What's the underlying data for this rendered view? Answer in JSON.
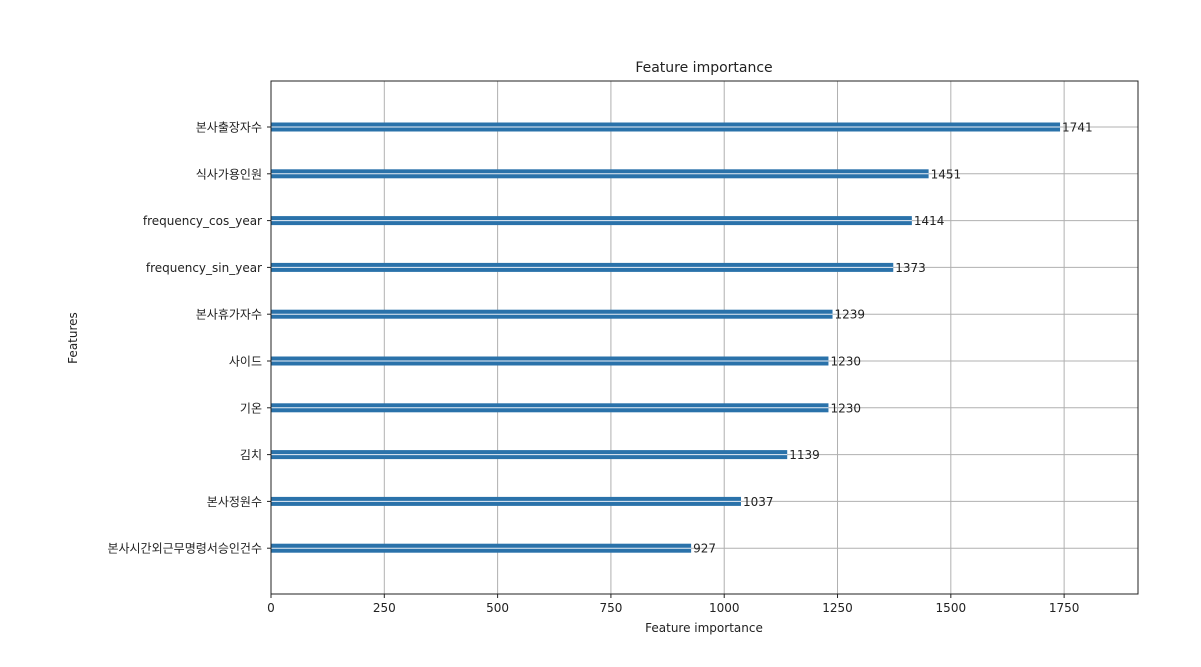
{
  "chart_data": {
    "type": "bar",
    "orientation": "horizontal",
    "title": "Feature importance",
    "xlabel": "Feature importance",
    "ylabel": "Features",
    "xlim": [
      0,
      1913
    ],
    "xticks": [
      0,
      250,
      500,
      750,
      1000,
      1250,
      1500,
      1750
    ],
    "grid": true,
    "categories": [
      "본사출장자수",
      "식사가용인원",
      "frequency_cos_year",
      "frequency_sin_year",
      "본사휴가자수",
      "사이드",
      "기온",
      "김치",
      "본사정원수",
      "본사시간외근무명령서승인건수"
    ],
    "values": [
      1741,
      1451,
      1414,
      1373,
      1239,
      1230,
      1230,
      1139,
      1037,
      927
    ],
    "bar_color": "#2a72aa",
    "grid_color": "#b0b0b0"
  }
}
